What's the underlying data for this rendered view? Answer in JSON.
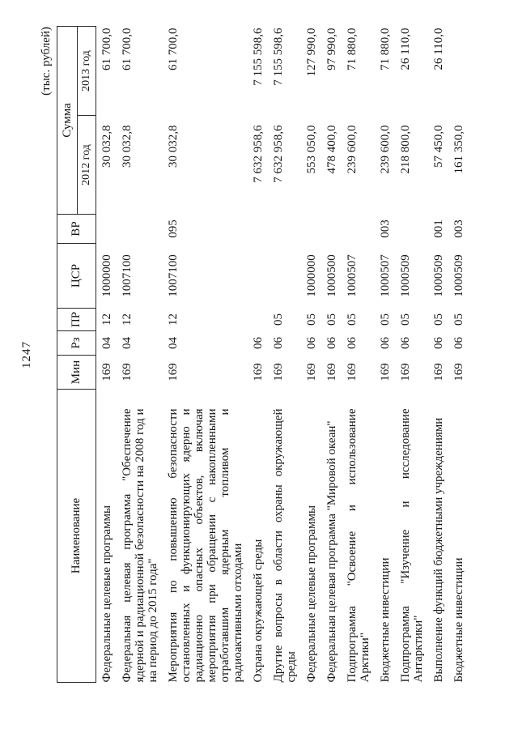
{
  "page": {
    "number": "1247",
    "units_note": "(тыс. рублей)"
  },
  "table": {
    "headers": {
      "name": "Наименование",
      "min": "Мин",
      "rz": "Рз",
      "pr": "ПР",
      "csr": "ЦСР",
      "vr": "ВР",
      "sum": "Сумма",
      "year2012": "2012 год",
      "year2013": "2013 год"
    },
    "rows": [
      {
        "name": "Федеральные целевые программы",
        "min": "169",
        "rz": "04",
        "pr": "12",
        "csr": "1000000",
        "vr": "",
        "y2012": "30 032,8",
        "y2013": "61 700,0"
      },
      {
        "name": "Федеральная целевая программа \"Обеспечение ядерной и радиационной безопасности на 2008 год и на период до 2015 года\"",
        "min": "169",
        "rz": "04",
        "pr": "12",
        "csr": "1007100",
        "vr": "",
        "y2012": "30 032,8",
        "y2013": "61 700,0"
      },
      {
        "name": "Мероприятия по повышению безопасности остановленных и функционирующих ядерно и радиационно опасных объектов, включая мероприятия при обращении с накопленными отработавшим ядерным топливом и радиоактивными отходами",
        "min": "169",
        "rz": "04",
        "pr": "12",
        "csr": "1007100",
        "vr": "095",
        "y2012": "30 032,8",
        "y2013": "61 700,0"
      },
      {
        "name": "Охрана окружающей среды",
        "min": "169",
        "rz": "06",
        "pr": "",
        "csr": "",
        "vr": "",
        "y2012": "7 632 958,6",
        "y2013": "7 155 598,6"
      },
      {
        "name": "Другие вопросы в области охраны окружающей среды",
        "min": "169",
        "rz": "06",
        "pr": "05",
        "csr": "",
        "vr": "",
        "y2012": "7 632 958,6",
        "y2013": "7 155 598,6"
      },
      {
        "name": "Федеральные целевые программы",
        "min": "169",
        "rz": "06",
        "pr": "05",
        "csr": "1000000",
        "vr": "",
        "y2012": "553 050,0",
        "y2013": "127 990,0"
      },
      {
        "name": "Федеральная целевая программа \"Мировой океан\"",
        "min": "169",
        "rz": "06",
        "pr": "05",
        "csr": "1000500",
        "vr": "",
        "y2012": "478 400,0",
        "y2013": "97 990,0"
      },
      {
        "name": "Подпрограмма \"Освоение и использование Арктики\"",
        "min": "169",
        "rz": "06",
        "pr": "05",
        "csr": "1000507",
        "vr": "",
        "y2012": "239 600,0",
        "y2013": "71 880,0"
      },
      {
        "name": "Бюджетные инвестиции",
        "min": "169",
        "rz": "06",
        "pr": "05",
        "csr": "1000507",
        "vr": "003",
        "y2012": "239 600,0",
        "y2013": "71 880,0"
      },
      {
        "name": "Подпрограмма \"Изучение и исследование Антарктики\"",
        "min": "169",
        "rz": "06",
        "pr": "05",
        "csr": "1000509",
        "vr": "",
        "y2012": "218 800,0",
        "y2013": "26 110,0"
      },
      {
        "name": "Выполнение функций бюджетными учреждениями",
        "min": "169",
        "rz": "06",
        "pr": "05",
        "csr": "1000509",
        "vr": "001",
        "y2012": "57 450,0",
        "y2013": "26 110,0"
      },
      {
        "name": "Бюджетные инвестиции",
        "min": "169",
        "rz": "06",
        "pr": "05",
        "csr": "1000509",
        "vr": "003",
        "y2012": "161 350,0",
        "y2013": ""
      }
    ]
  }
}
